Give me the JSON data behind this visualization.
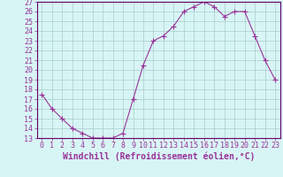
{
  "hours": [
    0,
    1,
    2,
    3,
    4,
    5,
    6,
    7,
    8,
    9,
    10,
    11,
    12,
    13,
    14,
    15,
    16,
    17,
    18,
    19,
    20,
    21,
    22,
    23
  ],
  "values": [
    17.5,
    16.0,
    15.0,
    14.0,
    13.5,
    13.0,
    13.0,
    13.0,
    13.5,
    17.0,
    20.5,
    23.0,
    23.5,
    24.5,
    26.0,
    26.5,
    27.0,
    26.5,
    25.5,
    26.0,
    26.0,
    23.5,
    21.0,
    19.0
  ],
  "line_color": "#993399",
  "marker": "+",
  "markersize": 4,
  "linewidth": 0.8,
  "bg_color": "#d8f5f5",
  "grid_color": "#aacccc",
  "xlabel": "Windchill (Refroidissement éolien,°C)",
  "ylim": [
    13,
    27
  ],
  "yticks": [
    13,
    14,
    15,
    16,
    17,
    18,
    19,
    20,
    21,
    22,
    23,
    24,
    25,
    26,
    27
  ],
  "xtick_labels": [
    "0",
    "1",
    "2",
    "3",
    "4",
    "5",
    "6",
    "7",
    "8",
    "9",
    "10",
    "11",
    "12",
    "13",
    "14",
    "15",
    "16",
    "17",
    "18",
    "19",
    "20",
    "21",
    "22",
    "23"
  ],
  "xlabel_fontsize": 7,
  "tick_fontsize": 6,
  "axis_color": "#993399",
  "spine_color": "#660066"
}
